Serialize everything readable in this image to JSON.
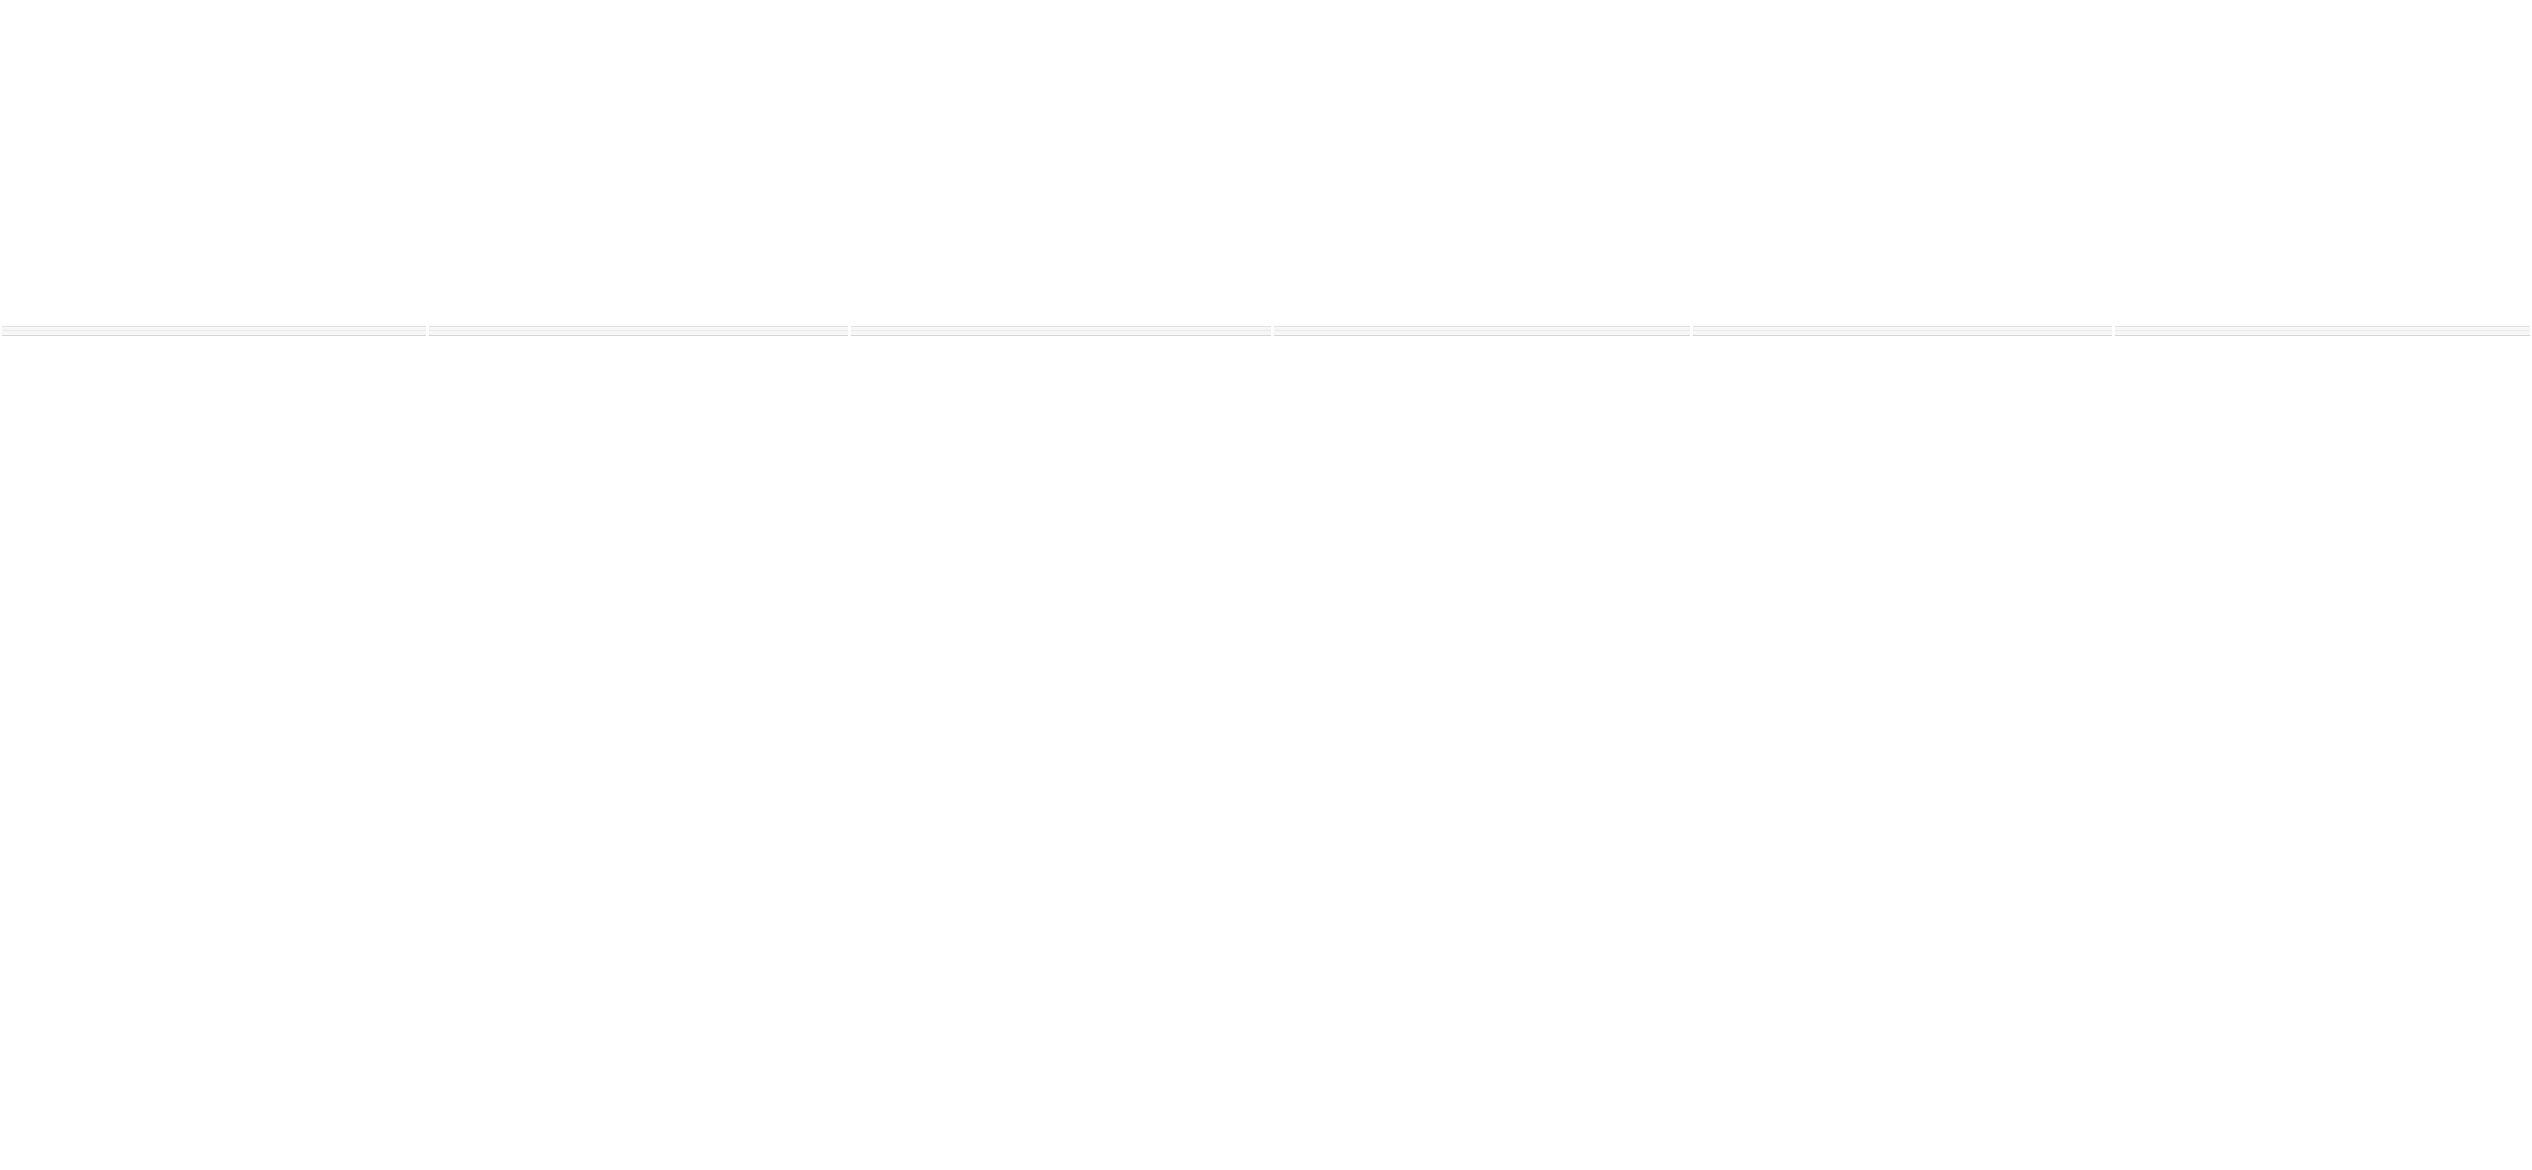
{
  "page": {
    "background": "#ffffff",
    "divider_color": "#e2e2e2"
  },
  "strip": {
    "segments": [
      {
        "label": ""
      },
      {
        "label": ""
      },
      {
        "label": ""
      },
      {
        "label": ""
      },
      {
        "label": ""
      },
      {
        "label": ""
      }
    ]
  }
}
